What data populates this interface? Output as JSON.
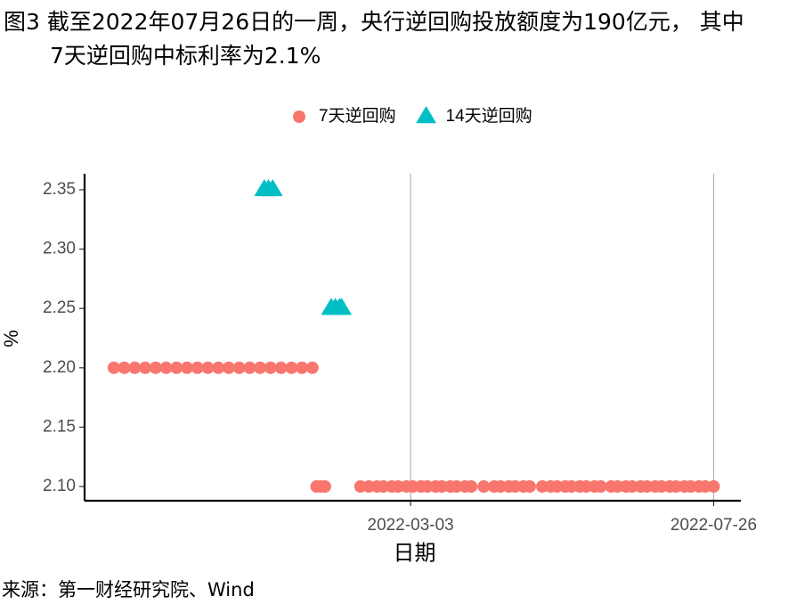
{
  "chart_data": {
    "type": "scatter",
    "title": "图3  截至2022年07月26日的一周，央行逆回购投放额度为190亿元， 其中7天逆回购中标利率为2.1%",
    "source": "来源：第一财经研究院、Wind",
    "x_label": "日期",
    "y_label": "%",
    "xlim": [
      "2021-09-28",
      "2022-08-08"
    ],
    "xticks": [
      "2022-03-03",
      "2022-07-26"
    ],
    "ylim": [
      2.088,
      2.3635
    ],
    "yticks": [
      {
        "value": 2.1,
        "label": "2.10"
      },
      2.15,
      {
        "value": 2.2,
        "label": "2.20"
      },
      2.25,
      {
        "value": 2.3,
        "label": "2.30"
      },
      2.35
    ],
    "grid": "x",
    "legend": "top",
    "series": [
      {
        "name": "7天逆回购",
        "color": "#F8766D",
        "marker": "circle",
        "x": [
          "2021-10-12",
          "2021-10-17",
          "2021-10-22",
          "2021-10-27",
          "2021-11-01",
          "2021-11-06",
          "2021-11-11",
          "2021-11-16",
          "2021-11-21",
          "2021-11-26",
          "2021-12-01",
          "2021-12-06",
          "2021-12-11",
          "2021-12-16",
          "2021-12-21",
          "2021-12-26",
          "2021-12-31",
          "2022-01-05",
          "2022-01-10",
          "2022-01-15",
          "2022-01-17",
          "2022-01-19",
          "2022-01-21",
          "2022-02-07",
          "2022-02-11",
          "2022-02-15",
          "2022-02-18",
          "2022-02-22",
          "2022-02-25",
          "2022-03-01",
          "2022-03-04",
          "2022-03-08",
          "2022-03-11",
          "2022-03-15",
          "2022-03-18",
          "2022-03-22",
          "2022-03-25",
          "2022-03-29",
          "2022-04-01",
          "2022-04-07",
          "2022-04-12",
          "2022-04-15",
          "2022-04-19",
          "2022-04-22",
          "2022-04-26",
          "2022-04-29",
          "2022-05-05",
          "2022-05-09",
          "2022-05-12",
          "2022-05-16",
          "2022-05-19",
          "2022-05-23",
          "2022-05-26",
          "2022-05-30",
          "2022-06-02",
          "2022-06-07",
          "2022-06-10",
          "2022-06-14",
          "2022-06-17",
          "2022-06-21",
          "2022-06-24",
          "2022-06-28",
          "2022-07-01",
          "2022-07-05",
          "2022-07-08",
          "2022-07-12",
          "2022-07-15",
          "2022-07-19",
          "2022-07-22",
          "2022-07-26"
        ],
        "values": [
          2.2,
          2.2,
          2.2,
          2.2,
          2.2,
          2.2,
          2.2,
          2.2,
          2.2,
          2.2,
          2.2,
          2.2,
          2.2,
          2.2,
          2.2,
          2.2,
          2.2,
          2.2,
          2.2,
          2.2,
          2.1,
          2.1,
          2.1,
          2.1,
          2.1,
          2.1,
          2.1,
          2.1,
          2.1,
          2.1,
          2.1,
          2.1,
          2.1,
          2.1,
          2.1,
          2.1,
          2.1,
          2.1,
          2.1,
          2.1,
          2.1,
          2.1,
          2.1,
          2.1,
          2.1,
          2.1,
          2.1,
          2.1,
          2.1,
          2.1,
          2.1,
          2.1,
          2.1,
          2.1,
          2.1,
          2.1,
          2.1,
          2.1,
          2.1,
          2.1,
          2.1,
          2.1,
          2.1,
          2.1,
          2.1,
          2.1,
          2.1,
          2.1,
          2.1,
          2.1
        ]
      },
      {
        "name": "14天逆回购",
        "color": "#00BFC4",
        "marker": "triangle",
        "x": [
          "2021-12-23",
          "2021-12-25",
          "2021-12-27",
          "2022-01-24",
          "2022-01-26",
          "2022-01-28",
          "2022-01-29"
        ],
        "values": [
          2.35,
          2.35,
          2.35,
          2.25,
          2.25,
          2.25,
          2.25
        ]
      }
    ]
  }
}
